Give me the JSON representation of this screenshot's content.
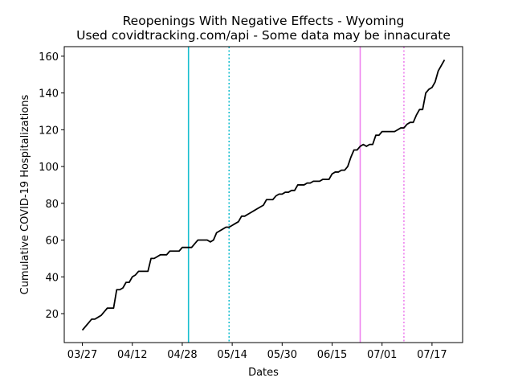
{
  "chart_data": {
    "type": "line",
    "title": "Reopenings With Negative Effects - Wyoming",
    "subtitle": "Used covidtracking.com/api - Some data may be innacurate",
    "xlabel": "Dates",
    "ylabel": "Cumulative COVID-19 Hospitalizations",
    "color": "#000000",
    "x": [
      "03/27",
      "03/28",
      "03/29",
      "03/30",
      "03/31",
      "04/01",
      "04/02",
      "04/03",
      "04/04",
      "04/05",
      "04/06",
      "04/07",
      "04/08",
      "04/09",
      "04/10",
      "04/11",
      "04/12",
      "04/13",
      "04/14",
      "04/15",
      "04/16",
      "04/17",
      "04/18",
      "04/19",
      "04/20",
      "04/21",
      "04/22",
      "04/23",
      "04/24",
      "04/25",
      "04/26",
      "04/27",
      "04/28",
      "04/29",
      "04/30",
      "05/01",
      "05/02",
      "05/03",
      "05/04",
      "05/05",
      "05/06",
      "05/07",
      "05/08",
      "05/09",
      "05/10",
      "05/11",
      "05/12",
      "05/13",
      "05/14",
      "05/15",
      "05/16",
      "05/17",
      "05/18",
      "05/19",
      "05/20",
      "05/21",
      "05/22",
      "05/23",
      "05/24",
      "05/25",
      "05/26",
      "05/27",
      "05/28",
      "05/29",
      "05/30",
      "05/31",
      "06/01",
      "06/02",
      "06/03",
      "06/04",
      "06/05",
      "06/06",
      "06/07",
      "06/08",
      "06/09",
      "06/10",
      "06/11",
      "06/12",
      "06/13",
      "06/14",
      "06/15",
      "06/16",
      "06/17",
      "06/18",
      "06/19",
      "06/20",
      "06/21",
      "06/22",
      "06/23",
      "06/24",
      "06/25",
      "06/26",
      "06/27",
      "06/28",
      "06/29",
      "06/30",
      "07/01",
      "07/02",
      "07/03",
      "07/04",
      "07/05",
      "07/06",
      "07/07",
      "07/08",
      "07/09",
      "07/10",
      "07/11",
      "07/12",
      "07/13",
      "07/14",
      "07/15",
      "07/16",
      "07/17",
      "07/18",
      "07/19",
      "07/20",
      "07/21"
    ],
    "values": [
      11,
      13,
      15,
      17,
      17,
      18,
      19,
      21,
      23,
      23,
      23,
      33,
      33,
      34,
      37,
      37,
      40,
      41,
      43,
      43,
      43,
      43,
      50,
      50,
      51,
      52,
      52,
      52,
      54,
      54,
      54,
      54,
      56,
      56,
      56,
      56,
      58,
      60,
      60,
      60,
      60,
      59,
      60,
      64,
      65,
      66,
      67,
      67,
      68,
      69,
      70,
      73,
      73,
      74,
      75,
      76,
      77,
      78,
      79,
      82,
      82,
      82,
      84,
      85,
      85,
      86,
      86,
      87,
      87,
      90,
      90,
      90,
      91,
      91,
      92,
      92,
      92,
      93,
      93,
      93,
      96,
      97,
      97,
      98,
      98,
      100,
      105,
      109,
      109,
      111,
      112,
      111,
      112,
      112,
      117,
      117,
      119,
      119,
      119,
      119,
      119,
      120,
      121,
      121,
      123,
      124,
      124,
      128,
      131,
      131,
      140,
      142,
      143,
      146,
      152,
      155,
      158
    ],
    "xticks": [
      "03/27",
      "04/12",
      "04/28",
      "05/14",
      "05/30",
      "06/15",
      "07/01",
      "07/17"
    ],
    "ylim": [
      4.25,
      165.2
    ],
    "yticks": [
      20,
      40,
      60,
      80,
      100,
      120,
      140,
      160
    ],
    "vlines": [
      {
        "x": "04/30",
        "color": "#17becf",
        "linestyle": "solid"
      },
      {
        "x": "05/13",
        "color": "#17becf",
        "linestyle": "dotted"
      },
      {
        "x": "06/24",
        "color": "#ee82ee",
        "linestyle": "solid"
      },
      {
        "x": "07/08",
        "color": "#ee82ee",
        "linestyle": "dotted"
      }
    ]
  }
}
